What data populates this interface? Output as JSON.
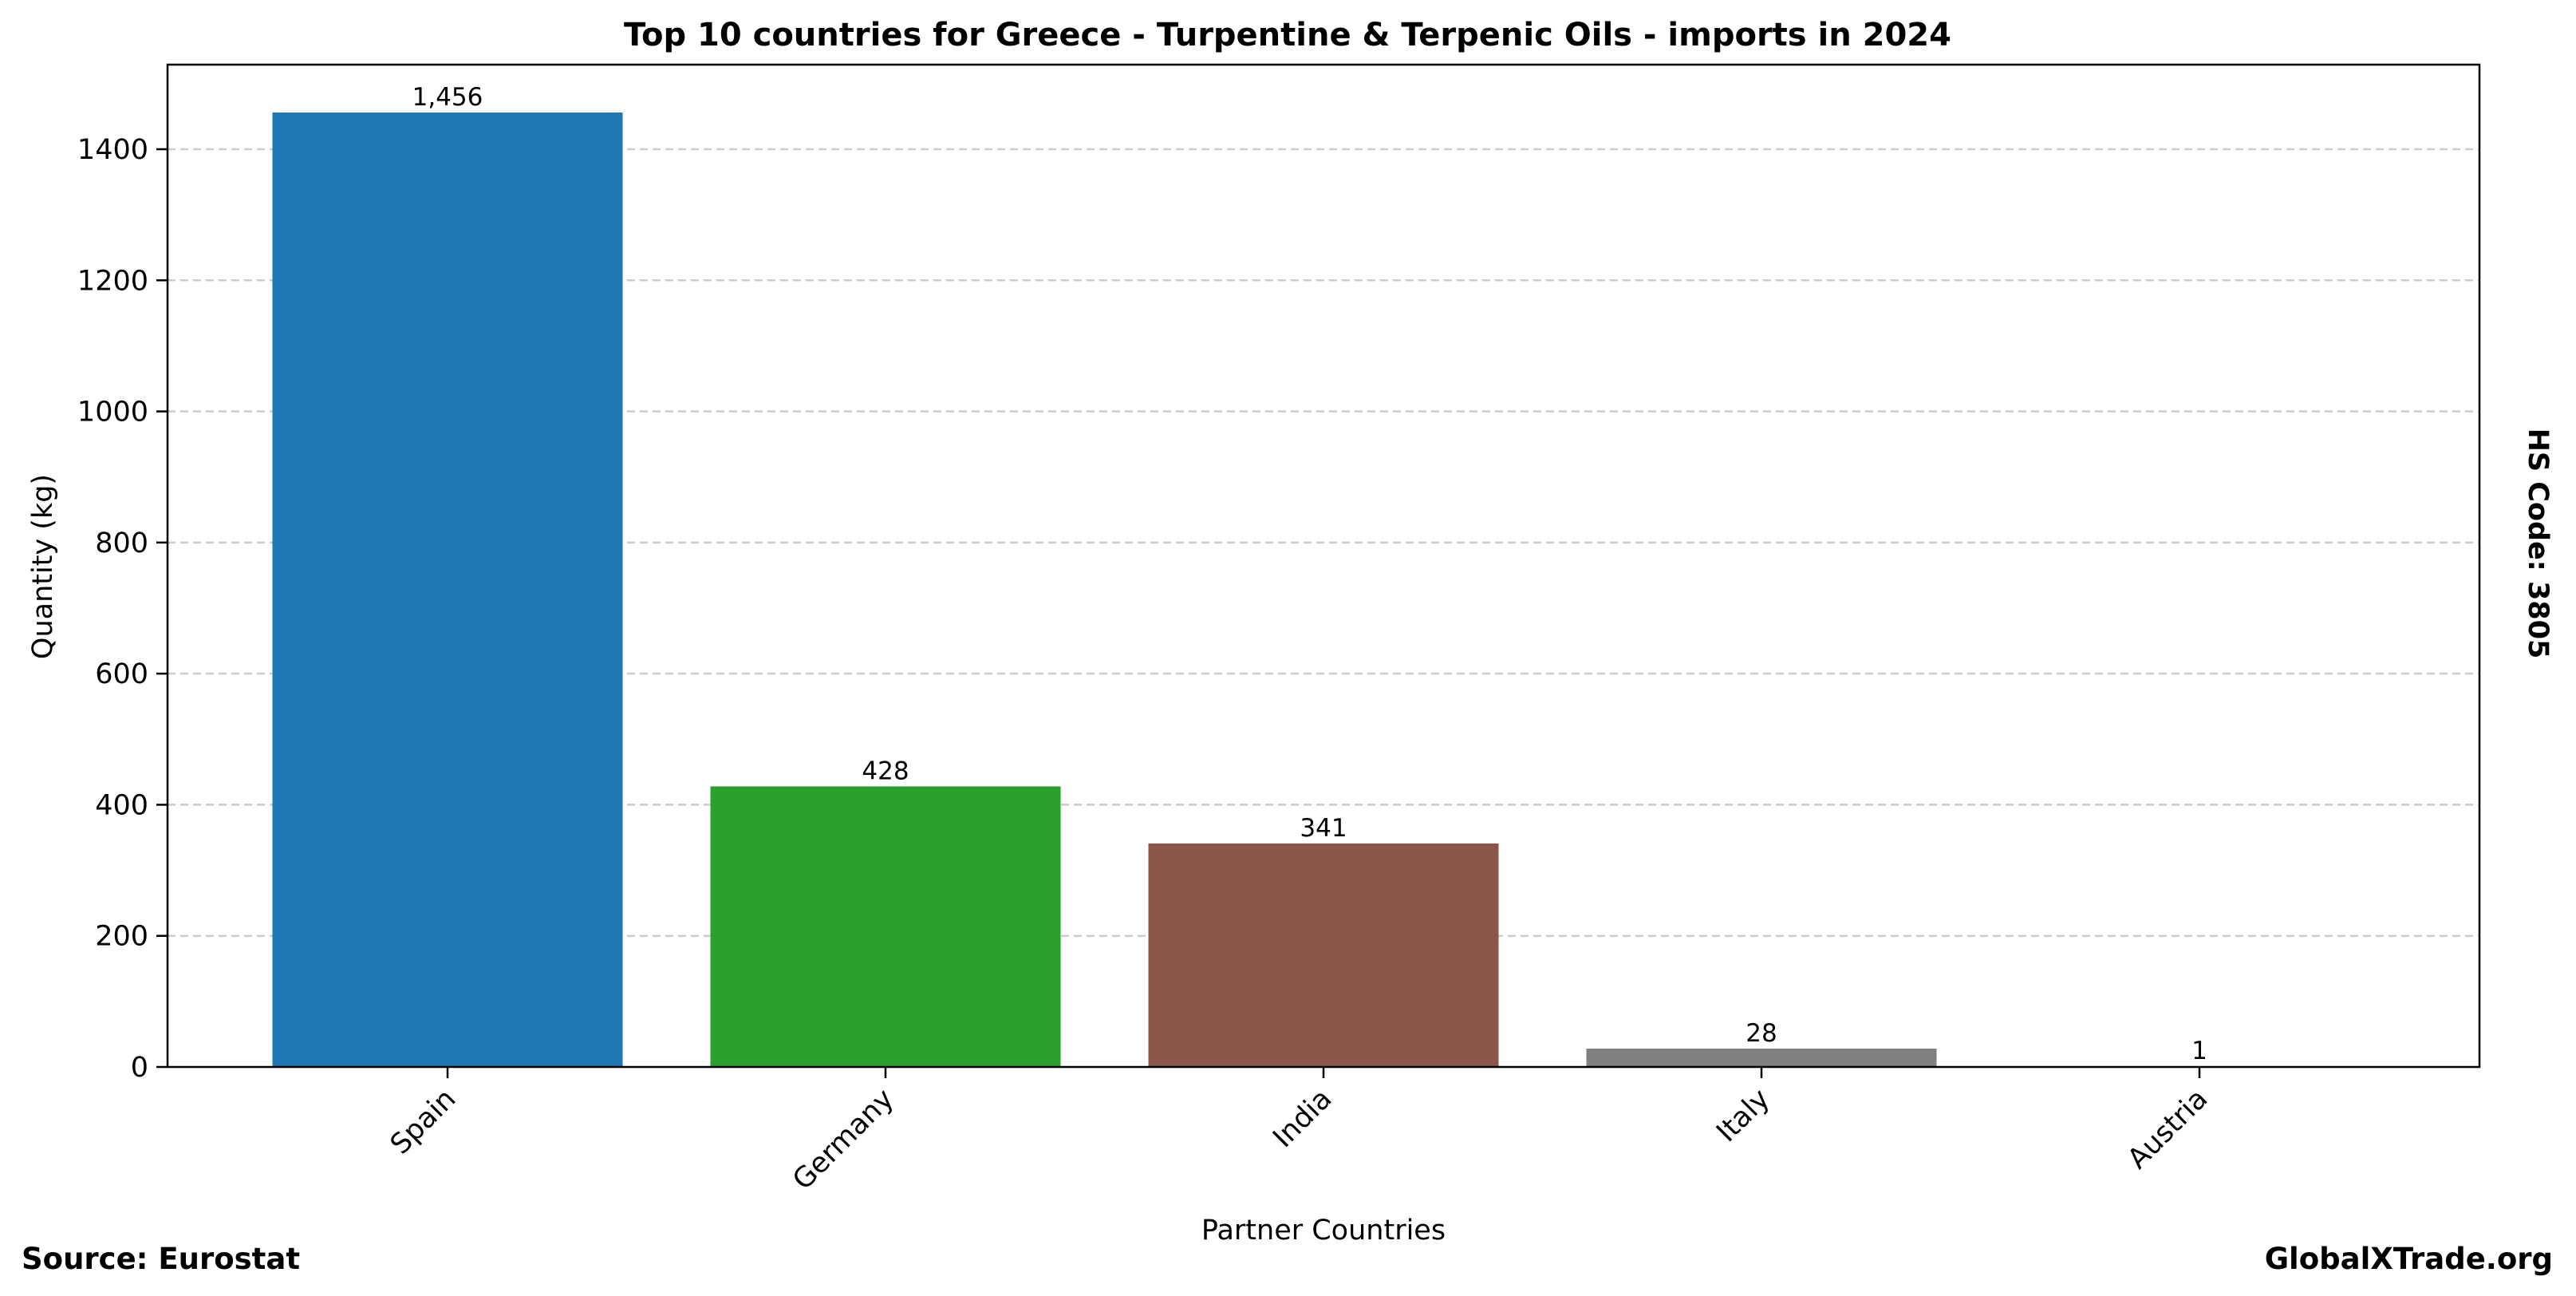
{
  "chart_data": {
    "type": "bar",
    "title": "Top 10 countries for Greece - Turpentine & Terpenic Oils - imports in 2024",
    "xlabel": "Partner Countries",
    "ylabel": "Quantity (kg)",
    "categories": [
      "Spain",
      "Germany",
      "India",
      "Italy",
      "Austria"
    ],
    "values": [
      1456,
      428,
      341,
      28,
      1
    ],
    "data_labels": [
      "1,456",
      "428",
      "341",
      "28",
      "1"
    ],
    "colors": [
      "#1f77b4",
      "#2ca02c",
      "#8c564b",
      "#7f7f7f",
      "#bcbd22"
    ],
    "ylim": [
      0,
      1529
    ],
    "yticks": [
      0,
      200,
      400,
      600,
      800,
      1000,
      1200,
      1400
    ],
    "grid": {
      "y": true,
      "style": "dashed",
      "color": "#cccccc"
    },
    "legend": "none"
  },
  "side_note": "HS Code: 3805",
  "footer": {
    "source": "Source: Eurostat",
    "brand": "GlobalXTrade.org"
  }
}
